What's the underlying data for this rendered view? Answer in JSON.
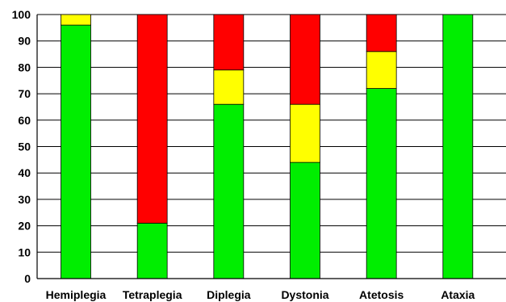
{
  "chart_data": {
    "type": "bar",
    "stacked": true,
    "categories": [
      "Hemiplegia",
      "Tetraplegia",
      "Diplegia",
      "Dystonia",
      "Atetosis",
      "Ataxia"
    ],
    "series": [
      {
        "color": "#00ee00",
        "values": [
          96,
          21,
          66,
          44,
          72,
          100
        ]
      },
      {
        "color": "#ffff00",
        "values": [
          4,
          0,
          13,
          22,
          14,
          0
        ]
      },
      {
        "color": "#ff0000",
        "values": [
          0,
          79,
          21,
          34,
          14,
          0
        ]
      }
    ],
    "ylim": [
      0,
      100
    ],
    "yticks": [
      "0",
      "10",
      "20",
      "30",
      "40",
      "50",
      "60",
      "70",
      "80",
      "90",
      "100"
    ],
    "grid": true,
    "legend": "none",
    "title": "",
    "xlabel": "",
    "ylabel": ""
  }
}
